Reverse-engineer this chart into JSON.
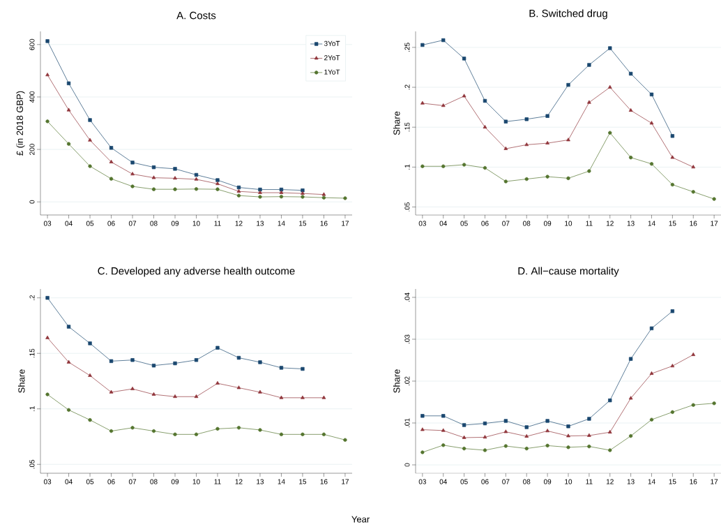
{
  "chart_data": [
    {
      "type": "line",
      "title": "A. Costs",
      "ylabel": "£ (in 2018 GBP)",
      "categories": [
        "03",
        "04",
        "05",
        "06",
        "07",
        "08",
        "09",
        "10",
        "11",
        "12",
        "13",
        "14",
        "15",
        "16",
        "17"
      ],
      "ylim": [
        -50,
        650
      ],
      "yticks": [
        0,
        200,
        400,
        600
      ],
      "grid": "y",
      "legend": "top right",
      "series": [
        {
          "name": "3YoT",
          "color": "#1a476f",
          "marker": "square",
          "values": [
            613,
            452,
            312,
            206,
            150,
            132,
            126,
            103,
            83,
            55,
            47,
            47,
            44,
            null,
            null
          ]
        },
        {
          "name": "2YoT",
          "color": "#90353b",
          "marker": "triangle",
          "values": [
            484,
            350,
            235,
            152,
            106,
            92,
            90,
            86,
            69,
            40,
            35,
            35,
            32,
            28,
            null
          ]
        },
        {
          "name": "1YoT",
          "color": "#55752f",
          "marker": "circle",
          "values": [
            307,
            221,
            136,
            88,
            59,
            48,
            48,
            49,
            48,
            24,
            19,
            20,
            19,
            16,
            14
          ]
        }
      ]
    },
    {
      "type": "line",
      "title": "B. Switched drug",
      "ylabel": "Share",
      "categories": [
        "03",
        "04",
        "05",
        "06",
        "07",
        "08",
        "09",
        "10",
        "11",
        "12",
        "13",
        "14",
        "15",
        "16",
        "17"
      ],
      "ylim": [
        0.04,
        0.27
      ],
      "yticks": [
        {
          "value": 0.05,
          "label": ".05"
        },
        {
          "value": 0.1,
          "label": ".1"
        },
        {
          "value": 0.15,
          "label": ".15"
        },
        {
          "value": 0.2,
          "label": ".2"
        },
        {
          "value": 0.25,
          "label": ".25"
        }
      ],
      "grid": "y",
      "series": [
        {
          "color": "#1a476f",
          "marker": "square",
          "values": [
            0.253,
            0.259,
            0.236,
            0.183,
            0.157,
            0.16,
            0.164,
            0.203,
            0.228,
            0.249,
            0.217,
            0.191,
            0.139,
            null,
            null
          ]
        },
        {
          "color": "#90353b",
          "marker": "triangle",
          "values": [
            0.18,
            0.177,
            0.189,
            0.15,
            0.123,
            0.128,
            0.13,
            0.134,
            0.181,
            0.2,
            0.171,
            0.155,
            0.112,
            0.1,
            null
          ]
        },
        {
          "color": "#55752f",
          "marker": "circle",
          "values": [
            0.101,
            0.101,
            0.103,
            0.099,
            0.082,
            0.085,
            0.088,
            0.086,
            0.095,
            0.143,
            0.112,
            0.104,
            0.078,
            0.069,
            0.06
          ]
        }
      ]
    },
    {
      "type": "line",
      "title": "C. Developed any adverse health outcome",
      "ylabel": "Share",
      "xlabel": "Year",
      "categories": [
        "03",
        "04",
        "05",
        "06",
        "07",
        "08",
        "09",
        "10",
        "11",
        "12",
        "13",
        "14",
        "15",
        "16",
        "17"
      ],
      "ylim": [
        0.042,
        0.208
      ],
      "yticks": [
        {
          "value": 0.05,
          "label": ".05"
        },
        {
          "value": 0.1,
          "label": ".1"
        },
        {
          "value": 0.15,
          "label": ".15"
        },
        {
          "value": 0.2,
          "label": ".2"
        }
      ],
      "grid": "y",
      "series": [
        {
          "color": "#1a476f",
          "marker": "square",
          "values": [
            0.2,
            0.174,
            0.159,
            0.143,
            0.144,
            0.139,
            0.141,
            0.144,
            0.155,
            0.146,
            0.142,
            0.137,
            0.136,
            null,
            null
          ]
        },
        {
          "color": "#90353b",
          "marker": "triangle",
          "values": [
            0.164,
            0.142,
            0.13,
            0.115,
            0.118,
            0.113,
            0.111,
            0.111,
            0.123,
            0.119,
            0.115,
            0.11,
            0.11,
            0.11,
            null
          ]
        },
        {
          "color": "#55752f",
          "marker": "circle",
          "values": [
            0.113,
            0.099,
            0.09,
            0.08,
            0.083,
            0.08,
            0.077,
            0.077,
            0.082,
            0.083,
            0.081,
            0.077,
            0.077,
            0.077,
            0.072
          ]
        }
      ]
    },
    {
      "type": "line",
      "title": "D. All−cause mortality",
      "ylabel": "Share",
      "categories": [
        "03",
        "04",
        "05",
        "06",
        "07",
        "08",
        "09",
        "10",
        "11",
        "12",
        "13",
        "14",
        "15",
        "16",
        "17"
      ],
      "ylim": [
        -0.002,
        0.042
      ],
      "yticks": [
        0,
        {
          "value": 0.01,
          "label": ".01"
        },
        {
          "value": 0.02,
          "label": ".02"
        },
        {
          "value": 0.03,
          "label": ".03"
        },
        {
          "value": 0.04,
          "label": ".04"
        }
      ],
      "grid": "y",
      "series": [
        {
          "color": "#1a476f",
          "marker": "square",
          "values": [
            0.0117,
            0.0117,
            0.0095,
            0.0099,
            0.0105,
            0.009,
            0.0105,
            0.0092,
            0.011,
            0.0154,
            0.0253,
            0.0326,
            0.0367,
            null,
            null
          ]
        },
        {
          "color": "#90353b",
          "marker": "triangle",
          "values": [
            0.0084,
            0.0082,
            0.0065,
            0.0066,
            0.0079,
            0.0068,
            0.0081,
            0.0069,
            0.007,
            0.0078,
            0.0159,
            0.0218,
            0.0236,
            0.0263,
            null
          ]
        },
        {
          "color": "#55752f",
          "marker": "circle",
          "values": [
            0.003,
            0.0047,
            0.0039,
            0.0035,
            0.0045,
            0.0039,
            0.0046,
            0.0042,
            0.0044,
            0.0035,
            0.0069,
            0.0108,
            0.0126,
            0.0143,
            0.0147
          ]
        }
      ]
    }
  ]
}
